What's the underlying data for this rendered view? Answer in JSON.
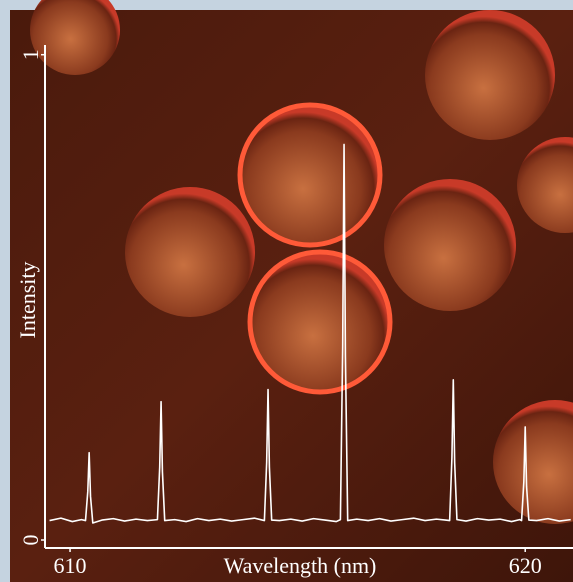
{
  "chart_data": {
    "type": "line",
    "x_label": "Wavelength (nm)",
    "y_label": "Intensity",
    "xlim": [
      609.45,
      621.05
    ],
    "xticks": [
      610,
      620
    ],
    "ylim": [
      -0.0165,
      1.02
    ],
    "yticks": [
      0,
      1
    ],
    "series": [
      {
        "color": "#ffffff",
        "x": [
          609.55,
          609.8,
          610.05,
          610.25,
          610.34,
          610.39,
          610.42,
          610.45,
          610.5,
          610.7,
          610.95,
          611.2,
          611.45,
          611.7,
          611.92,
          611.97,
          612.0,
          612.03,
          612.08,
          612.3,
          612.55,
          612.8,
          613.05,
          613.3,
          613.55,
          613.8,
          614.05,
          614.27,
          614.32,
          614.35,
          614.38,
          614.43,
          614.6,
          614.85,
          615.1,
          615.35,
          615.6,
          615.85,
          615.94,
          615.99,
          616.02,
          616.05,
          616.1,
          616.3,
          616.55,
          616.8,
          617.05,
          617.3,
          617.55,
          617.8,
          618.05,
          618.25,
          618.34,
          618.39,
          618.42,
          618.45,
          618.5,
          618.7,
          618.95,
          619.2,
          619.45,
          619.7,
          619.88,
          619.92,
          619.97,
          620.0,
          620.03,
          620.08,
          620.25,
          620.5,
          620.75,
          621.0
        ],
        "values": [
          0.04,
          0.045,
          0.038,
          0.042,
          0.04,
          0.1,
          0.18,
          0.09,
          0.035,
          0.041,
          0.044,
          0.039,
          0.043,
          0.04,
          0.042,
          0.15,
          0.285,
          0.14,
          0.04,
          0.042,
          0.038,
          0.044,
          0.04,
          0.043,
          0.039,
          0.042,
          0.045,
          0.04,
          0.16,
          0.31,
          0.15,
          0.041,
          0.04,
          0.043,
          0.039,
          0.044,
          0.041,
          0.038,
          0.042,
          0.4,
          0.815,
          0.38,
          0.04,
          0.043,
          0.04,
          0.044,
          0.039,
          0.042,
          0.045,
          0.04,
          0.043,
          0.041,
          0.04,
          0.17,
          0.33,
          0.16,
          0.042,
          0.039,
          0.044,
          0.041,
          0.043,
          0.038,
          0.042,
          0.04,
          0.12,
          0.233,
          0.11,
          0.041,
          0.04,
          0.044,
          0.039,
          0.042
        ]
      }
    ]
  }
}
